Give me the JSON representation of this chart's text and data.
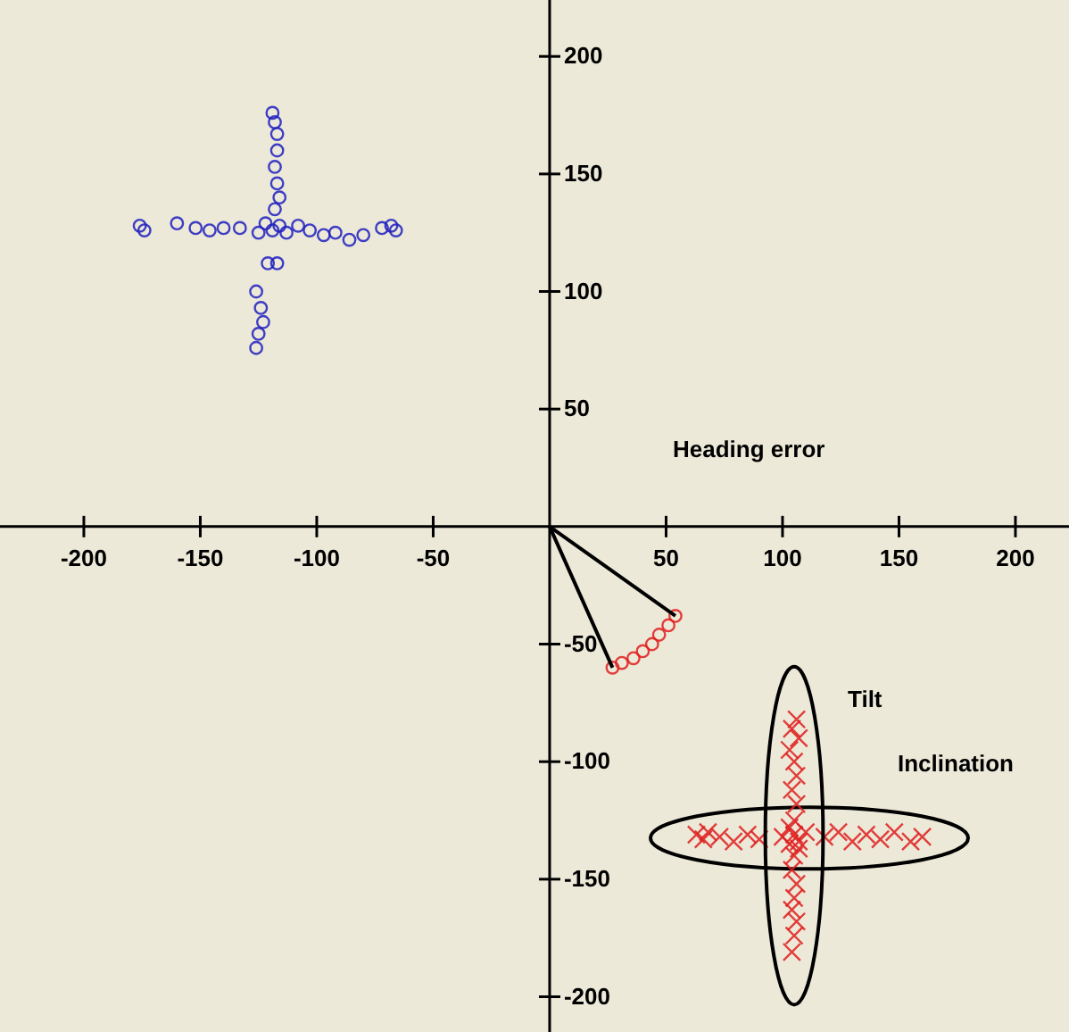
{
  "chart_data": {
    "type": "scatter",
    "xlim": [
      -236,
      223
    ],
    "ylim": [
      -215,
      224
    ],
    "xticks": [
      -200,
      -150,
      -100,
      -50,
      50,
      100,
      150,
      200
    ],
    "yticks": [
      -200,
      -150,
      -100,
      -50,
      50,
      100,
      150,
      200
    ],
    "grid": false,
    "annotations": [
      "Heading error",
      "Tilt",
      "Inclination"
    ],
    "series": [
      {
        "color": "#2020c0",
        "marker": "circle",
        "x": [
          -176,
          -174,
          -160,
          -152,
          -146,
          -140,
          -133,
          -125,
          -122,
          -119,
          -116,
          -113,
          -108,
          -103,
          -97,
          -92,
          -86,
          -80,
          -72,
          -68,
          -66,
          -119,
          -118,
          -117,
          -117,
          -118,
          -117,
          -116,
          -118,
          -117,
          -121,
          -126,
          -124,
          -123,
          -125,
          -126
        ],
        "values": [
          128,
          126,
          129,
          127,
          126,
          127,
          127,
          125,
          129,
          126,
          128,
          125,
          128,
          126,
          124,
          125,
          122,
          124,
          127,
          128,
          126,
          176,
          172,
          167,
          160,
          153,
          146,
          140,
          135,
          112,
          112,
          100,
          93,
          87,
          82,
          76
        ]
      },
      {
        "color": "#e02020",
        "marker": "circle",
        "x": [
          27,
          31,
          36,
          40,
          44,
          47,
          51,
          54
        ],
        "values": [
          -60,
          -58,
          -56,
          -53,
          -50,
          -46,
          -42,
          -38
        ]
      },
      {
        "color": "#e02020",
        "marker": "cross",
        "x": [
          63,
          66,
          68,
          73,
          79,
          85,
          90,
          100,
          103,
          105,
          107,
          110,
          118,
          124,
          130,
          136,
          142,
          148,
          155,
          160
        ],
        "values": [
          -131,
          -133,
          -130,
          -132,
          -134,
          -131,
          -133,
          -132,
          -135,
          -131,
          -134,
          -130,
          -132,
          -130,
          -134,
          -131,
          -133,
          -130,
          -134,
          -132
        ]
      },
      {
        "color": "#e02020",
        "marker": "cross",
        "x": [
          106,
          104,
          107,
          103,
          105,
          106,
          104,
          106,
          105,
          103,
          107,
          105,
          104,
          106,
          105,
          104,
          106,
          105,
          104
        ],
        "values": [
          -82,
          -86,
          -90,
          -95,
          -100,
          -106,
          -112,
          -118,
          -125,
          -128,
          -137,
          -140,
          -146,
          -152,
          -158,
          -163,
          -168,
          -174,
          -181
        ]
      },
      {
        "type": "line",
        "color": "#000000",
        "marker": "none",
        "x": [
          27,
          0,
          54
        ],
        "values": [
          -60,
          0,
          -38
        ]
      }
    ]
  }
}
